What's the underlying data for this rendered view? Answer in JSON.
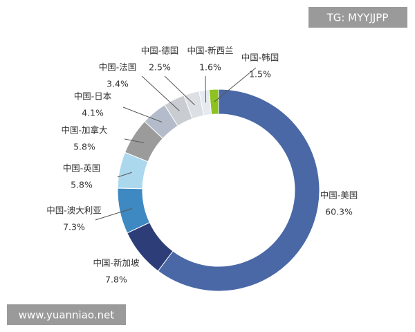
{
  "chart_data": {
    "type": "donut",
    "categories": [
      "中国-美国",
      "中国-新加坡",
      "中国-澳大利亚",
      "中国-英国",
      "中国-加拿大",
      "中国-日本",
      "中国-法国",
      "中国-德国",
      "中国-新西兰",
      "中国-韩国"
    ],
    "values": [
      60.3,
      7.8,
      7.3,
      5.8,
      5.8,
      4.1,
      3.4,
      2.5,
      1.6,
      1.5
    ],
    "value_labels": [
      "60.3%",
      "7.8%",
      "7.3%",
      "5.8%",
      "5.8%",
      "4.1%",
      "3.4%",
      "2.5%",
      "1.6%",
      "1.5%"
    ],
    "colors": [
      "#4a68a6",
      "#2d3d78",
      "#3e89c2",
      "#acd8ee",
      "#9b9b9b",
      "#b4bccb",
      "#c9cdd1",
      "#dcdfe3",
      "#e6ebf1",
      "#8ec31f"
    ]
  },
  "watermarks": [
    "TG: MYYJJPP",
    "www.yuanniao.net"
  ]
}
